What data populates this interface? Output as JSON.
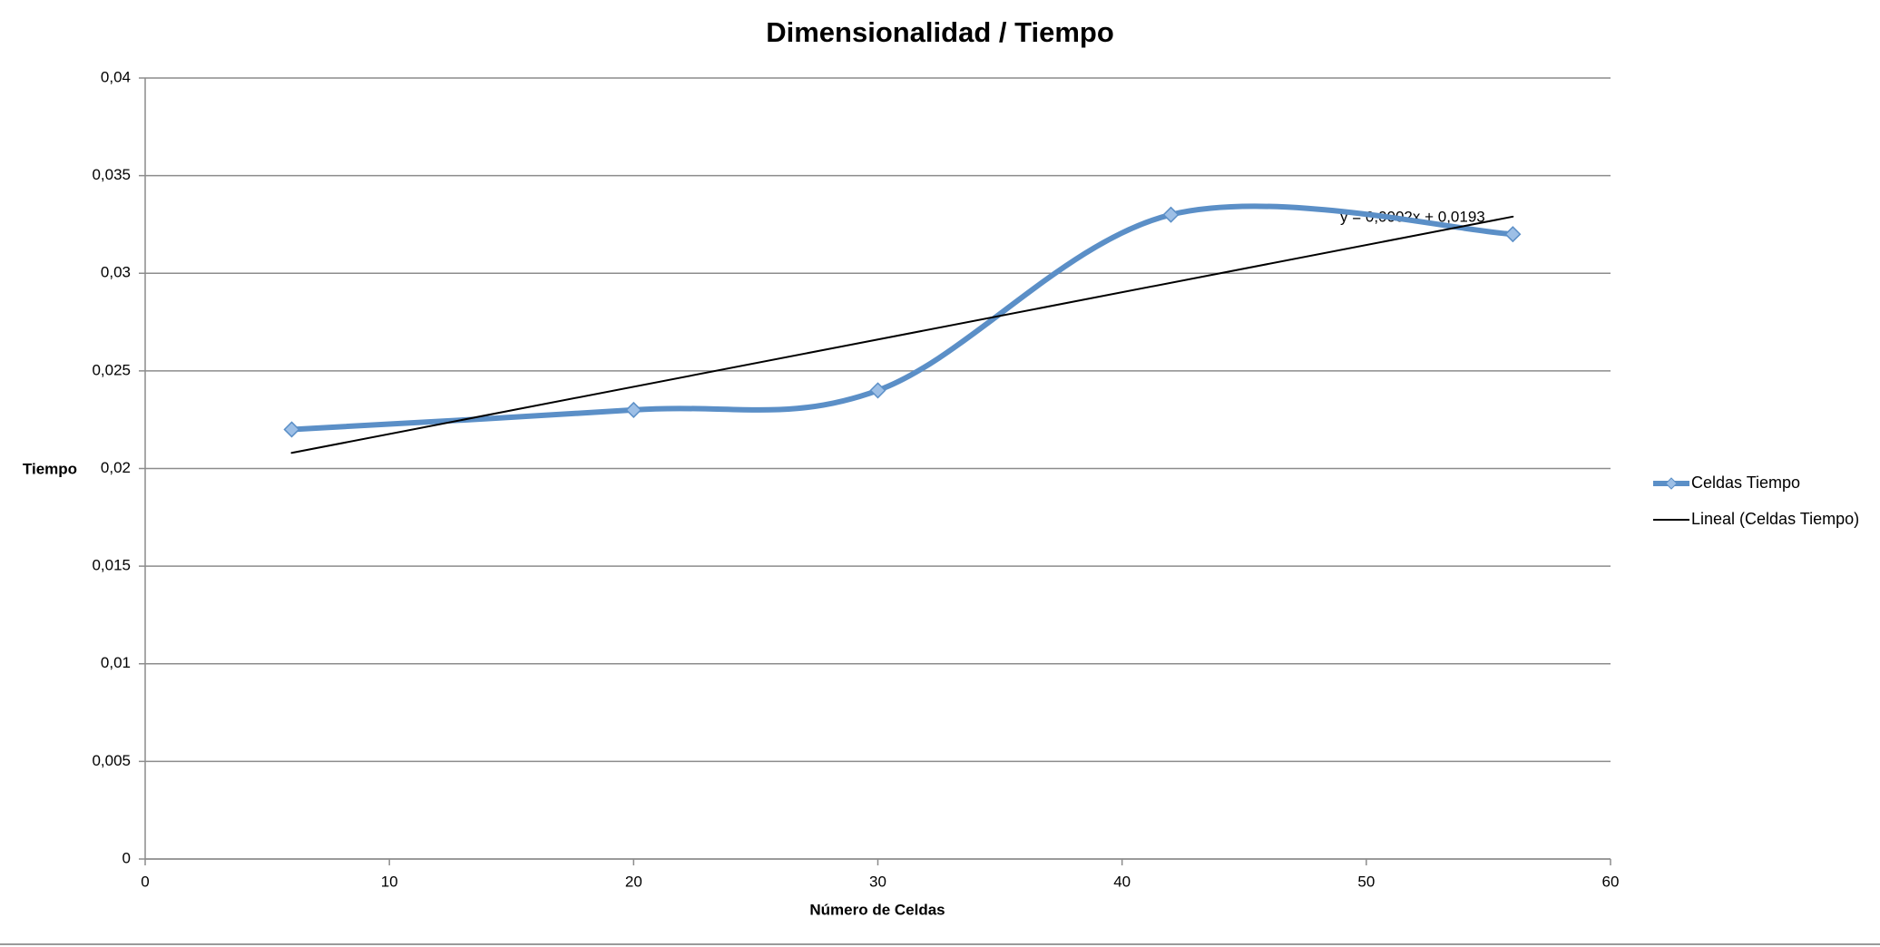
{
  "chart_data": {
    "type": "scatter",
    "title": "Dimensionalidad / Tiempo",
    "xlabel": "Número de Celdas",
    "ylabel": "Tiempo",
    "annotation": "y = 0,0002x + 0,0193",
    "series": [
      {
        "name": "Celdas Tiempo",
        "color": "#5b8fc7",
        "smooth": true,
        "markers": true,
        "x": [
          6,
          20,
          30,
          42,
          56
        ],
        "values": [
          0.022,
          0.023,
          0.024,
          0.033,
          0.032
        ]
      },
      {
        "name": "Lineal (Celdas Tiempo)",
        "color": "#000000",
        "smooth": false,
        "markers": false,
        "x": [
          6,
          56
        ],
        "values": [
          0.0208,
          0.0329
        ]
      }
    ],
    "xlim": [
      0,
      60
    ],
    "xticks": [
      0,
      10,
      20,
      30,
      40,
      50,
      60
    ],
    "ylim": [
      0,
      0.04
    ],
    "yticks": [
      0,
      {
        "value": 0.005,
        "label": "0,005"
      },
      {
        "value": 0.01,
        "label": "0,01"
      },
      {
        "value": 0.015,
        "label": "0,015"
      },
      {
        "value": 0.02,
        "label": "0,02"
      },
      {
        "value": 0.025,
        "label": "0,025"
      },
      {
        "value": 0.03,
        "label": "0,03"
      },
      {
        "value": 0.035,
        "label": "0,035"
      },
      {
        "value": 0.04,
        "label": "0,04"
      }
    ],
    "grid": true,
    "legend": "right"
  }
}
